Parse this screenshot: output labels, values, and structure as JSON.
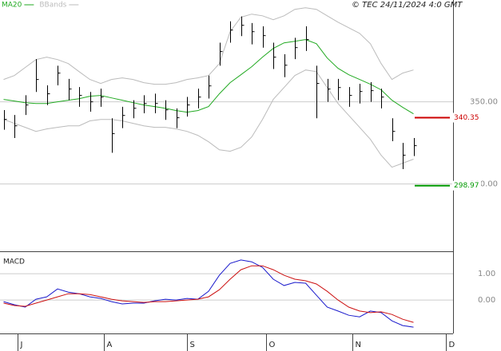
{
  "chart_data": [
    {
      "type": "ohlc",
      "copyright": "© TEC 24/11/2024 4:0 GMT",
      "x": [
        1,
        4,
        7,
        10,
        13,
        16,
        19,
        22,
        25,
        28,
        31,
        34,
        37,
        40,
        43,
        46,
        49,
        52,
        55,
        58,
        61,
        64,
        67,
        70,
        73,
        76,
        79,
        82,
        85,
        88,
        91,
        94,
        97,
        100,
        103,
        106,
        109,
        112,
        115
      ],
      "close": [
        339.3,
        335.4,
        348.1,
        363.6,
        354.9,
        367.5,
        357.8,
        353.9,
        350.0,
        352.9,
        330.6,
        341.7,
        346.1,
        349.0,
        349.0,
        345.1,
        340.3,
        348.1,
        352.9,
        359.7,
        380.6,
        393.7,
        396.6,
        392.7,
        390.3,
        377.2,
        372.3,
        383.0,
        387.9,
        361.2,
        357.8,
        358.7,
        353.9,
        356.3,
        356.8,
        352.9,
        332.0,
        317.5,
        323.3
      ],
      "high": [
        345,
        342,
        354,
        376,
        360,
        372,
        364,
        359,
        356,
        358,
        340,
        347,
        351,
        354,
        355,
        351,
        346,
        353,
        358,
        366,
        386,
        399,
        402,
        398,
        396,
        386,
        379,
        389,
        396,
        372,
        364,
        364,
        359,
        361,
        362,
        358,
        340,
        325,
        328
      ],
      "low": [
        333,
        328,
        342,
        356,
        348,
        360,
        351,
        347,
        344,
        347,
        319,
        334,
        340,
        343,
        343,
        339,
        334,
        341,
        346,
        352,
        372,
        386,
        390,
        385,
        383,
        370,
        365,
        376,
        381,
        340,
        350,
        351,
        347,
        349,
        350,
        346,
        326,
        309,
        317
      ],
      "color": "#000000",
      "xlim": [
        0,
        126
      ],
      "ylim": [
        259,
        412
      ],
      "yticks": [
        {
          "value": 350,
          "label": "350.00"
        },
        {
          "value": 300,
          "label": "300.00"
        }
      ],
      "levels": [
        {
          "value": 340.35,
          "color": "#cc0000"
        },
        {
          "value": 298.97,
          "color": "#009900"
        }
      ],
      "series": [
        {
          "name": "MA20",
          "color": "#22aa22",
          "values": [
            351.5,
            350.5,
            349.5,
            349.0,
            349.0,
            350.0,
            351.0,
            351.9,
            353.4,
            353.9,
            352.4,
            351.0,
            349.5,
            348.1,
            347.1,
            346.1,
            344.7,
            343.7,
            344.7,
            347.1,
            354.9,
            361.7,
            366.5,
            371.4,
            377.2,
            382.5,
            385.9,
            386.9,
            387.9,
            385.4,
            376.7,
            370.4,
            366.5,
            363.6,
            360.7,
            357.3,
            351.0,
            346.6,
            342.7
          ]
        },
        {
          "name": "BBands",
          "color": "#bbbbbb",
          "upper": [
            363.6,
            366.0,
            370.9,
            375.7,
            377.2,
            375.7,
            373.3,
            368.4,
            363.6,
            361.2,
            363.6,
            364.6,
            363.6,
            361.7,
            360.7,
            360.7,
            361.7,
            363.6,
            364.6,
            366.0,
            373.3,
            392.7,
            401.5,
            403.4,
            402.4,
            400.0,
            402.4,
            406.3,
            407.3,
            406.3,
            402.4,
            398.5,
            395.1,
            391.7,
            385.4,
            373.3,
            363.6,
            367.5,
            369.4
          ],
          "lower": [
            339.3,
            336.9,
            334.5,
            332.0,
            333.5,
            334.5,
            335.4,
            335.4,
            338.4,
            339.3,
            339.3,
            338.4,
            336.9,
            335.4,
            334.5,
            334.5,
            333.5,
            332.0,
            329.6,
            325.7,
            320.8,
            319.9,
            322.3,
            328.6,
            339.3,
            351.5,
            358.7,
            366.0,
            369.4,
            368.4,
            358.7,
            349.0,
            341.7,
            334.5,
            327.2,
            317.5,
            310.2,
            312.6,
            315.1
          ]
        }
      ]
    },
    {
      "type": "line",
      "title": "MACD",
      "x": [
        1,
        4,
        7,
        10,
        13,
        16,
        19,
        22,
        25,
        28,
        31,
        34,
        37,
        40,
        43,
        46,
        49,
        52,
        55,
        58,
        61,
        64,
        67,
        70,
        73,
        76,
        79,
        82,
        85,
        88,
        91,
        94,
        97,
        100,
        103,
        106,
        109,
        112,
        115
      ],
      "xlim": [
        0,
        126
      ],
      "ylim": [
        -1.27,
        1.76
      ],
      "yticks": [
        {
          "value": 1,
          "label": "1.00"
        },
        {
          "value": 0,
          "label": "0.00"
        }
      ],
      "xticks": [
        {
          "value": 6,
          "label": "J"
        },
        {
          "value": 30,
          "label": "A"
        },
        {
          "value": 53,
          "label": "S"
        },
        {
          "value": 75,
          "label": "O"
        },
        {
          "value": 99,
          "label": "N"
        },
        {
          "value": 125,
          "label": "D"
        }
      ],
      "series": [
        {
          "color": "#1a1acc",
          "values": [
            -0.06,
            -0.18,
            -0.27,
            0.03,
            0.12,
            0.42,
            0.3,
            0.24,
            0.12,
            0.06,
            -0.06,
            -0.15,
            -0.12,
            -0.12,
            -0.03,
            0.03,
            0.0,
            0.06,
            0.03,
            0.33,
            0.94,
            1.39,
            1.52,
            1.45,
            1.24,
            0.79,
            0.55,
            0.67,
            0.64,
            0.18,
            -0.27,
            -0.42,
            -0.58,
            -0.64,
            -0.42,
            -0.48,
            -0.79,
            -0.97,
            -1.03
          ]
        },
        {
          "color": "#cc1111",
          "values": [
            -0.12,
            -0.21,
            -0.24,
            -0.12,
            0.0,
            0.12,
            0.24,
            0.24,
            0.21,
            0.12,
            0.03,
            -0.03,
            -0.06,
            -0.09,
            -0.06,
            -0.06,
            -0.03,
            0.0,
            0.03,
            0.12,
            0.39,
            0.79,
            1.15,
            1.3,
            1.3,
            1.15,
            0.94,
            0.79,
            0.73,
            0.61,
            0.33,
            0.0,
            -0.27,
            -0.42,
            -0.48,
            -0.45,
            -0.55,
            -0.73,
            -0.85
          ]
        }
      ]
    }
  ]
}
